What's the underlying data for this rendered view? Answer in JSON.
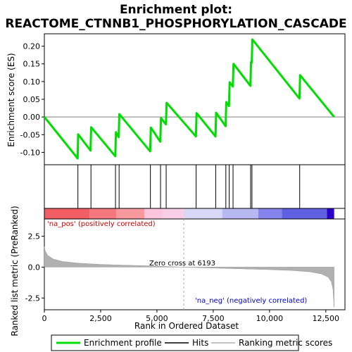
{
  "chart_data": {
    "type": "line",
    "title_line1": "Enrichment plot:",
    "title_line2": "REACTOME_CTNNB1_PHOSPHORYLATION_CASCADE",
    "es_panel": {
      "ylabel": "Enrichment score (ES)",
      "ylim": [
        -0.135,
        0.235
      ],
      "yticks": [
        -0.1,
        -0.05,
        0.0,
        0.05,
        0.1,
        0.15,
        0.2
      ],
      "ytick_labels": [
        "-0.10",
        "-0.05",
        "0.00",
        "0.05",
        "0.10",
        "0.15",
        "0.20"
      ],
      "series": [
        {
          "name": "Enrichment profile",
          "color": "#00dd00",
          "points": [
            [
              0,
              0.0
            ],
            [
              1480,
              -0.117
            ],
            [
              1500,
              -0.049
            ],
            [
              2050,
              -0.095
            ],
            [
              2080,
              -0.029
            ],
            [
              3150,
              -0.111
            ],
            [
              3180,
              -0.043
            ],
            [
              3300,
              -0.057
            ],
            [
              3330,
              0.008
            ],
            [
              4700,
              -0.097
            ],
            [
              4730,
              -0.03
            ],
            [
              5150,
              -0.07
            ],
            [
              5180,
              -0.003
            ],
            [
              5400,
              -0.021
            ],
            [
              5430,
              0.04
            ],
            [
              6730,
              -0.055
            ],
            [
              6760,
              0.011
            ],
            [
              7600,
              -0.055
            ],
            [
              7630,
              0.012
            ],
            [
              8050,
              -0.026
            ],
            [
              8080,
              0.042
            ],
            [
              8200,
              0.031
            ],
            [
              8230,
              0.098
            ],
            [
              8370,
              0.086
            ],
            [
              8400,
              0.15
            ],
            [
              9150,
              0.088
            ],
            [
              9180,
              0.155
            ],
            [
              9210,
              0.153
            ],
            [
              9240,
              0.219
            ],
            [
              11330,
              0.052
            ],
            [
              11360,
              0.118
            ],
            [
              12870,
              0.0
            ]
          ]
        }
      ]
    },
    "hits": [
      1490,
      2070,
      3160,
      3320,
      4710,
      5160,
      5410,
      6740,
      7610,
      8060,
      8210,
      8380,
      9160,
      9220,
      11340
    ],
    "hits_legend": "Hits",
    "ranked_panel": {
      "xlabel": "Rank in Ordered Dataset",
      "ylabel": "Ranked list metric (PreRanked)",
      "xlim": [
        0,
        13350
      ],
      "xticks": [
        0,
        2500,
        5000,
        7500,
        10000,
        12500
      ],
      "xtick_labels": [
        "0",
        "2,500",
        "5,000",
        "7,500",
        "10,000",
        "12,500"
      ],
      "ylim": [
        -3.45,
        3.9
      ],
      "yticks": [
        -2.5,
        0.0,
        2.5
      ],
      "ytick_labels": [
        "-2.5",
        "0.0",
        "2.5"
      ],
      "n_genes": 12870,
      "zero_cross": 6193,
      "zero_cross_label": "Zero cross at 6193",
      "pos_label": "'na_pos' (positively correlated)",
      "neg_label": "'na_neg' (negatively correlated)",
      "metric_points": [
        [
          0,
          1.65
        ],
        [
          40,
          1.3
        ],
        [
          150,
          0.95
        ],
        [
          400,
          0.65
        ],
        [
          800,
          0.46
        ],
        [
          1500,
          0.32
        ],
        [
          2500,
          0.22
        ],
        [
          3500,
          0.16
        ],
        [
          4500,
          0.11
        ],
        [
          5500,
          0.05
        ],
        [
          6193,
          0.0
        ],
        [
          7000,
          -0.05
        ],
        [
          8000,
          -0.1
        ],
        [
          9000,
          -0.15
        ],
        [
          10000,
          -0.2
        ],
        [
          11000,
          -0.27
        ],
        [
          11800,
          -0.38
        ],
        [
          12300,
          -0.55
        ],
        [
          12600,
          -0.8
        ],
        [
          12750,
          -1.2
        ],
        [
          12820,
          -1.8
        ],
        [
          12870,
          -3.25
        ]
      ],
      "metric_fill_color": "#b0b0b0"
    },
    "color_bar": {
      "segments": [
        {
          "x0": 0,
          "x1": 2000,
          "color": "#f05d63"
        },
        {
          "x0": 2000,
          "x1": 3200,
          "color": "#f4787d"
        },
        {
          "x0": 3200,
          "x1": 4450,
          "color": "#f7989d"
        },
        {
          "x0": 4450,
          "x1": 5250,
          "color": "#fbc6dd"
        },
        {
          "x0": 5250,
          "x1": 6193,
          "color": "#f9cfe8"
        },
        {
          "x0": 6193,
          "x1": 7900,
          "color": "#d8d8f6"
        },
        {
          "x0": 7900,
          "x1": 9500,
          "color": "#b7b7f2"
        },
        {
          "x0": 9500,
          "x1": 10550,
          "color": "#8484ec"
        },
        {
          "x0": 10550,
          "x1": 12550,
          "color": "#6060e2"
        },
        {
          "x0": 12550,
          "x1": 12870,
          "color": "#2a00c8"
        }
      ]
    },
    "legend": [
      {
        "label": "Enrichment profile",
        "color": "#00dd00"
      },
      {
        "label": "Hits",
        "color": "#000000"
      },
      {
        "label": "Ranking metric scores",
        "color": "#b0b0b0"
      }
    ]
  }
}
